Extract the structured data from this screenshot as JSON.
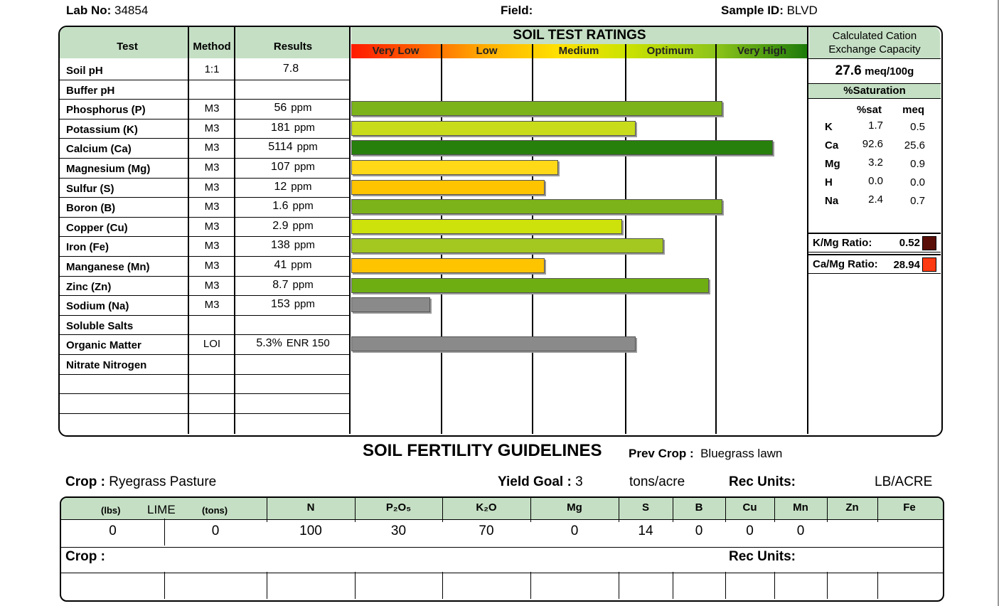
{
  "header": {
    "lab_label": "Lab No:",
    "lab_value": "34854",
    "field_label": "Field:",
    "sample_label": "Sample ID:",
    "sample_value": "BLVD"
  },
  "colors": {
    "header_green": "#c5dfc4",
    "very_low": "#ff2a00",
    "low": "#ff8a00",
    "medium": "#ffd200",
    "optimum": "#b5d400",
    "very_high": "#3a9a10"
  },
  "ratings_title": "SOIL TEST RATINGS",
  "scale": [
    "Very Low",
    "Low",
    "Medium",
    "Optimum",
    "Very High"
  ],
  "columns": {
    "test": "Test",
    "method": "Method",
    "results": "Results"
  },
  "rows": [
    {
      "test": "Soil pH",
      "method": "1:1",
      "result": "7.8",
      "unit": ""
    },
    {
      "test": "Buffer pH",
      "method": "",
      "result": "",
      "unit": ""
    },
    {
      "test": "Phosphorus (P)",
      "method": "M3",
      "result": "56",
      "unit": "ppm"
    },
    {
      "test": "Potassium (K)",
      "method": "M3",
      "result": "181",
      "unit": "ppm"
    },
    {
      "test": "Calcium (Ca)",
      "method": "M3",
      "result": "5114",
      "unit": "ppm"
    },
    {
      "test": "Magnesium (Mg)",
      "method": "M3",
      "result": "107",
      "unit": "ppm"
    },
    {
      "test": "Sulfur (S)",
      "method": "M3",
      "result": "12",
      "unit": "ppm"
    },
    {
      "test": "Boron (B)",
      "method": "M3",
      "result": "1.6",
      "unit": "ppm"
    },
    {
      "test": "Copper (Cu)",
      "method": "M3",
      "result": "2.9",
      "unit": "ppm"
    },
    {
      "test": "Iron (Fe)",
      "method": "M3",
      "result": "138",
      "unit": "ppm"
    },
    {
      "test": "Manganese (Mn)",
      "method": "M3",
      "result": "41",
      "unit": "ppm"
    },
    {
      "test": "Zinc (Zn)",
      "method": "M3",
      "result": "8.7",
      "unit": "ppm"
    },
    {
      "test": "Sodium (Na)",
      "method": "M3",
      "result": "153",
      "unit": "ppm"
    },
    {
      "test": "Soluble Salts",
      "method": "",
      "result": "",
      "unit": ""
    },
    {
      "test": "Organic Matter",
      "method": "LOI",
      "result": "5.3%",
      "unit": "ENR 150"
    },
    {
      "test": "Nitrate Nitrogen",
      "method": "",
      "result": "",
      "unit": ""
    },
    {
      "test": "",
      "method": "",
      "result": "",
      "unit": ""
    },
    {
      "test": "",
      "method": "",
      "result": "",
      "unit": ""
    },
    {
      "test": "",
      "method": "",
      "result": "",
      "unit": ""
    }
  ],
  "chart_data": {
    "type": "bar",
    "title": "SOIL TEST RATINGS",
    "scale_units": "rating scale 0-5 (Very Low, Low, Medium, Optimum, Very High)",
    "categories": [
      "Phosphorus (P)",
      "Potassium (K)",
      "Calcium (Ca)",
      "Magnesium (Mg)",
      "Sulfur (S)",
      "Boron (B)",
      "Copper (Cu)",
      "Iron (Fe)",
      "Manganese (Mn)",
      "Zinc (Zn)",
      "Sodium (Na)",
      "Organic Matter"
    ],
    "values": [
      4.05,
      3.1,
      4.6,
      2.25,
      2.1,
      4.05,
      2.95,
      3.4,
      2.1,
      3.9,
      0.85,
      3.1
    ],
    "bar_colors": [
      "#7cb31a",
      "#c8dc1c",
      "#277f0c",
      "#ffd818",
      "#ffc400",
      "#7cb31a",
      "#cde10a",
      "#a4c820",
      "#ffc400",
      "#6fae12",
      "#8a8a8a",
      "#8a8a8a"
    ],
    "row_index": [
      2,
      3,
      4,
      5,
      6,
      7,
      8,
      9,
      10,
      11,
      12,
      14
    ],
    "xlim": [
      0,
      5
    ]
  },
  "cec": {
    "title_line1": "Calculated Cation",
    "title_line2": "Exchange Capacity",
    "value": "27.6",
    "unit": "meq/100g",
    "saturation_title": "%Saturation",
    "col_sat": "%sat",
    "col_meq": "meq",
    "items": [
      {
        "el": "K",
        "sat": "1.7",
        "meq": "0.5"
      },
      {
        "el": "Ca",
        "sat": "92.6",
        "meq": "25.6"
      },
      {
        "el": "Mg",
        "sat": "3.2",
        "meq": "0.9"
      },
      {
        "el": "H",
        "sat": "0.0",
        "meq": "0.0"
      },
      {
        "el": "Na",
        "sat": "2.4",
        "meq": "0.7"
      }
    ],
    "kmg_label": "K/Mg Ratio:",
    "kmg_value": "0.52",
    "kmg_color": "#5a0e08",
    "camg_label": "Ca/Mg Ratio:",
    "camg_value": "28.94",
    "camg_color": "#ff3b14"
  },
  "guidelines": {
    "title": "SOIL FERTILITY GUIDELINES",
    "prev_crop_label": "Prev Crop :",
    "prev_crop_value": "Bluegrass lawn",
    "crop_label": "Crop :",
    "crop_value": "Ryegrass Pasture",
    "yield_label": "Yield Goal :",
    "yield_value": "3",
    "yield_unit": "tons/acre",
    "rec_units_label": "Rec Units:",
    "rec_units_value": "LB/ACRE",
    "lime_lbs": "(lbs)",
    "lime": "LIME",
    "lime_tons": "(tons)",
    "headers": [
      "N",
      "P₂O₅",
      "K₂O",
      "Mg",
      "S",
      "B",
      "Cu",
      "Mn",
      "Zn",
      "Fe"
    ],
    "values": [
      "0",
      "0",
      "100",
      "30",
      "70",
      "0",
      "14",
      "0",
      "0",
      "0",
      ""
    ],
    "crop2_label": "Crop :",
    "rec_units2_label": "Rec Units:"
  }
}
